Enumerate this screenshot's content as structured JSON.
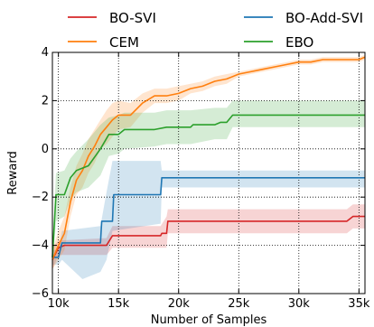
{
  "chart_data": {
    "type": "line",
    "xlabel": "Number of Samples",
    "ylabel": "Reward",
    "xlim": [
      9500,
      35500
    ],
    "ylim": [
      -6,
      4
    ],
    "x_ticks": [
      10000,
      15000,
      20000,
      25000,
      30000,
      35000
    ],
    "x_tick_labels": [
      "10k",
      "15k",
      "20k",
      "25k",
      "30k",
      "35k"
    ],
    "y_ticks": [
      -6,
      -4,
      -2,
      0,
      2,
      4
    ],
    "y_tick_labels": [
      "−6",
      "−4",
      "−2",
      "0",
      "2",
      "4"
    ],
    "grid": true,
    "grid_style": "dotted",
    "legend_position": "top-outside",
    "legend_columns": 2,
    "series": [
      {
        "name": "BO-SVI",
        "color": "#d62728",
        "mean": [
          [
            9500,
            -4.6
          ],
          [
            10000,
            -4.1
          ],
          [
            10500,
            -4.0
          ],
          [
            14000,
            -4.0
          ],
          [
            14500,
            -3.6
          ],
          [
            18500,
            -3.6
          ],
          [
            18600,
            -3.5
          ],
          [
            19000,
            -3.5
          ],
          [
            19100,
            -3.0
          ],
          [
            34000,
            -3.0
          ],
          [
            34500,
            -2.8
          ],
          [
            35500,
            -2.8
          ]
        ],
        "upper": [
          [
            9500,
            -4.1
          ],
          [
            10000,
            -3.8
          ],
          [
            14000,
            -3.7
          ],
          [
            14500,
            -3.2
          ],
          [
            18500,
            -3.2
          ],
          [
            19000,
            -2.8
          ],
          [
            19100,
            -2.5
          ],
          [
            34000,
            -2.5
          ],
          [
            34500,
            -2.3
          ],
          [
            35500,
            -2.3
          ]
        ],
        "lower": [
          [
            9500,
            -5.0
          ],
          [
            10000,
            -4.4
          ],
          [
            14000,
            -4.4
          ],
          [
            14500,
            -4.1
          ],
          [
            18500,
            -4.1
          ],
          [
            19000,
            -4.1
          ],
          [
            19100,
            -3.5
          ],
          [
            34000,
            -3.5
          ],
          [
            34500,
            -3.3
          ],
          [
            35500,
            -3.3
          ]
        ]
      },
      {
        "name": "BO-Add-SVI",
        "color": "#1f77b4",
        "mean": [
          [
            9500,
            -4.5
          ],
          [
            10000,
            -4.5
          ],
          [
            10300,
            -3.9
          ],
          [
            13500,
            -3.9
          ],
          [
            13600,
            -3.0
          ],
          [
            14500,
            -3.0
          ],
          [
            14600,
            -1.9
          ],
          [
            18500,
            -1.9
          ],
          [
            18600,
            -1.2
          ],
          [
            35500,
            -1.2
          ]
        ],
        "upper": [
          [
            9500,
            -4.2
          ],
          [
            10000,
            -4.2
          ],
          [
            10300,
            -3.4
          ],
          [
            13500,
            -3.2
          ],
          [
            14000,
            -1.8
          ],
          [
            14500,
            -0.5
          ],
          [
            18500,
            -0.5
          ],
          [
            18600,
            -0.9
          ],
          [
            35500,
            -0.9
          ]
        ],
        "lower": [
          [
            9500,
            -4.8
          ],
          [
            10000,
            -4.8
          ],
          [
            10300,
            -4.6
          ],
          [
            12000,
            -5.4
          ],
          [
            13500,
            -5.1
          ],
          [
            14000,
            -4.6
          ],
          [
            14500,
            -3.4
          ],
          [
            18500,
            -3.1
          ],
          [
            18600,
            -1.6
          ],
          [
            35500,
            -1.6
          ]
        ]
      },
      {
        "name": "CEM",
        "color": "#ff7f0e",
        "mean": [
          [
            9500,
            -4.6
          ],
          [
            10000,
            -4.0
          ],
          [
            10500,
            -3.5
          ],
          [
            11000,
            -2.2
          ],
          [
            11500,
            -1.3
          ],
          [
            12000,
            -0.9
          ],
          [
            12500,
            -0.3
          ],
          [
            13000,
            0.1
          ],
          [
            13500,
            0.6
          ],
          [
            14000,
            0.9
          ],
          [
            14500,
            1.2
          ],
          [
            15000,
            1.4
          ],
          [
            16000,
            1.4
          ],
          [
            17000,
            1.9
          ],
          [
            18000,
            2.2
          ],
          [
            19000,
            2.2
          ],
          [
            20000,
            2.3
          ],
          [
            21000,
            2.5
          ],
          [
            22000,
            2.6
          ],
          [
            23000,
            2.8
          ],
          [
            24000,
            2.9
          ],
          [
            25000,
            3.1
          ],
          [
            26000,
            3.2
          ],
          [
            27000,
            3.3
          ],
          [
            28000,
            3.4
          ],
          [
            29000,
            3.5
          ],
          [
            30000,
            3.6
          ],
          [
            31000,
            3.6
          ],
          [
            32000,
            3.7
          ],
          [
            33000,
            3.7
          ],
          [
            34000,
            3.7
          ],
          [
            35000,
            3.7
          ],
          [
            35500,
            3.8
          ]
        ],
        "upper": [
          [
            9500,
            -4.2
          ],
          [
            10000,
            -3.4
          ],
          [
            10500,
            -2.8
          ],
          [
            11000,
            -1.6
          ],
          [
            11500,
            -0.7
          ],
          [
            12000,
            -0.2
          ],
          [
            12500,
            0.4
          ],
          [
            13000,
            0.8
          ],
          [
            13500,
            1.2
          ],
          [
            14000,
            1.6
          ],
          [
            14500,
            1.9
          ],
          [
            15000,
            2.0
          ],
          [
            16000,
            1.9
          ],
          [
            17000,
            2.3
          ],
          [
            18000,
            2.5
          ],
          [
            19000,
            2.5
          ],
          [
            20000,
            2.6
          ],
          [
            21000,
            2.7
          ],
          [
            22000,
            2.8
          ],
          [
            23000,
            3.0
          ],
          [
            24000,
            3.1
          ],
          [
            25000,
            3.2
          ],
          [
            26000,
            3.3
          ],
          [
            27000,
            3.4
          ],
          [
            28000,
            3.5
          ],
          [
            29000,
            3.6
          ],
          [
            30000,
            3.7
          ],
          [
            31000,
            3.7
          ],
          [
            32000,
            3.8
          ],
          [
            33000,
            3.8
          ],
          [
            34000,
            3.8
          ],
          [
            35000,
            3.8
          ],
          [
            35500,
            3.9
          ]
        ],
        "lower": [
          [
            9500,
            -5.0
          ],
          [
            10000,
            -4.6
          ],
          [
            10500,
            -4.2
          ],
          [
            11000,
            -2.8
          ],
          [
            11500,
            -1.9
          ],
          [
            12000,
            -1.6
          ],
          [
            12500,
            -1.0
          ],
          [
            13000,
            -0.6
          ],
          [
            13500,
            0.0
          ],
          [
            14000,
            0.2
          ],
          [
            14500,
            0.5
          ],
          [
            15000,
            0.8
          ],
          [
            16000,
            0.9
          ],
          [
            17000,
            1.5
          ],
          [
            18000,
            1.9
          ],
          [
            19000,
            1.9
          ],
          [
            20000,
            2.0
          ],
          [
            21000,
            2.3
          ],
          [
            22000,
            2.4
          ],
          [
            23000,
            2.6
          ],
          [
            24000,
            2.7
          ],
          [
            25000,
            3.0
          ],
          [
            26000,
            3.1
          ],
          [
            27000,
            3.2
          ],
          [
            28000,
            3.3
          ],
          [
            29000,
            3.4
          ],
          [
            30000,
            3.5
          ],
          [
            31000,
            3.5
          ],
          [
            32000,
            3.6
          ],
          [
            33000,
            3.6
          ],
          [
            34000,
            3.6
          ],
          [
            35000,
            3.6
          ],
          [
            35500,
            3.7
          ]
        ]
      },
      {
        "name": "EBO",
        "color": "#2ca02c",
        "mean": [
          [
            9500,
            -4.5
          ],
          [
            9800,
            -1.9
          ],
          [
            10500,
            -1.9
          ],
          [
            11000,
            -1.2
          ],
          [
            11500,
            -0.9
          ],
          [
            12500,
            -0.7
          ],
          [
            13500,
            0.0
          ],
          [
            14200,
            0.6
          ],
          [
            15000,
            0.6
          ],
          [
            15500,
            0.8
          ],
          [
            18000,
            0.8
          ],
          [
            19000,
            0.9
          ],
          [
            21000,
            0.9
          ],
          [
            21200,
            1.0
          ],
          [
            23000,
            1.0
          ],
          [
            23500,
            1.1
          ],
          [
            24000,
            1.1
          ],
          [
            24500,
            1.4
          ],
          [
            35500,
            1.4
          ]
        ],
        "upper": [
          [
            9500,
            -4.0
          ],
          [
            9800,
            -1.0
          ],
          [
            10500,
            -0.9
          ],
          [
            11000,
            -0.4
          ],
          [
            11500,
            -0.1
          ],
          [
            12500,
            0.4
          ],
          [
            13500,
            1.0
          ],
          [
            14200,
            1.3
          ],
          [
            15000,
            1.4
          ],
          [
            15500,
            1.5
          ],
          [
            18000,
            1.5
          ],
          [
            19000,
            1.6
          ],
          [
            21000,
            1.6
          ],
          [
            23000,
            1.7
          ],
          [
            24000,
            1.7
          ],
          [
            24500,
            2.0
          ],
          [
            35500,
            2.0
          ]
        ],
        "lower": [
          [
            9500,
            -5.0
          ],
          [
            9800,
            -3.0
          ],
          [
            10500,
            -2.8
          ],
          [
            11000,
            -2.1
          ],
          [
            11500,
            -1.8
          ],
          [
            12500,
            -1.6
          ],
          [
            13500,
            -1.1
          ],
          [
            14200,
            -0.3
          ],
          [
            15000,
            -0.2
          ],
          [
            15500,
            0.0
          ],
          [
            18000,
            0.1
          ],
          [
            19000,
            0.2
          ],
          [
            21000,
            0.2
          ],
          [
            23000,
            0.4
          ],
          [
            24000,
            0.4
          ],
          [
            24500,
            0.9
          ],
          [
            35500,
            0.9
          ]
        ]
      }
    ]
  }
}
